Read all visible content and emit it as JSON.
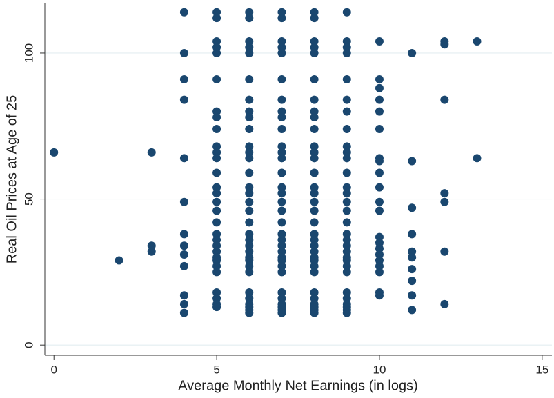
{
  "chart_data": {
    "type": "scatter",
    "xlabel": "Average Monthly Net Earnings (in logs)",
    "ylabel": "Real Oil Prices at Age of 25",
    "color": "#1a476f",
    "grid": true,
    "xlim": [
      -0.28,
      15.3
    ],
    "ylim": [
      -3.5,
      117
    ],
    "xticks": [
      0,
      5,
      10,
      15
    ],
    "yticks": [
      0,
      50,
      100
    ],
    "x": [
      0,
      2,
      3,
      3,
      3,
      4,
      4,
      4,
      4,
      4,
      4,
      4,
      4,
      4,
      4,
      4,
      4,
      4,
      5,
      5,
      5,
      5,
      5,
      5,
      5,
      5,
      5,
      5,
      5,
      5,
      5,
      5,
      5,
      5,
      5,
      5,
      5,
      5,
      5,
      5,
      5,
      5,
      5,
      5,
      5,
      5,
      5,
      5,
      6,
      6,
      6,
      6,
      6,
      6,
      6,
      6,
      6,
      6,
      6,
      6,
      6,
      6,
      6,
      6,
      6,
      6,
      6,
      6,
      6,
      6,
      6,
      6,
      6,
      6,
      6,
      6,
      6,
      6,
      6,
      6,
      6,
      7,
      7,
      7,
      7,
      7,
      7,
      7,
      7,
      7,
      7,
      7,
      7,
      7,
      7,
      7,
      7,
      7,
      7,
      7,
      7,
      7,
      7,
      7,
      7,
      7,
      7,
      7,
      7,
      7,
      7,
      7,
      7,
      7,
      8,
      8,
      8,
      8,
      8,
      8,
      8,
      8,
      8,
      8,
      8,
      8,
      8,
      8,
      8,
      8,
      8,
      8,
      8,
      8,
      8,
      8,
      8,
      8,
      8,
      8,
      8,
      8,
      8,
      8,
      8,
      8,
      8,
      9,
      9,
      9,
      9,
      9,
      9,
      9,
      9,
      9,
      9,
      9,
      9,
      9,
      9,
      9,
      9,
      9,
      9,
      9,
      9,
      9,
      9,
      9,
      9,
      9,
      9,
      9,
      9,
      9,
      9,
      9,
      10,
      10,
      10,
      10,
      10,
      10,
      10,
      10,
      10,
      10,
      10,
      10,
      10,
      10,
      10,
      10,
      10,
      10,
      10,
      10,
      10,
      11,
      11,
      11,
      11,
      11,
      11,
      11,
      11,
      11,
      11,
      12,
      12,
      12,
      12,
      12,
      12,
      12,
      13,
      13
    ],
    "y": [
      66,
      29,
      66,
      34,
      32,
      114,
      100,
      91,
      84,
      64,
      49,
      38,
      34,
      31,
      27,
      17,
      14,
      11,
      114,
      112,
      104,
      102,
      100,
      91,
      80,
      78,
      74,
      68,
      66,
      64,
      59,
      54,
      52,
      49,
      46,
      42,
      38,
      36,
      34,
      32,
      30,
      29,
      27,
      25,
      18,
      16,
      14,
      13,
      114,
      112,
      104,
      102,
      100,
      91,
      84,
      80,
      78,
      74,
      68,
      66,
      64,
      59,
      54,
      52,
      49,
      46,
      42,
      38,
      36,
      34,
      32,
      30,
      29,
      27,
      25,
      18,
      16,
      14,
      13,
      12,
      11,
      114,
      112,
      104,
      102,
      100,
      91,
      84,
      80,
      78,
      74,
      68,
      66,
      64,
      59,
      54,
      52,
      49,
      46,
      42,
      38,
      36,
      34,
      32,
      30,
      29,
      27,
      25,
      18,
      16,
      14,
      13,
      12,
      11,
      114,
      112,
      104,
      102,
      100,
      91,
      84,
      80,
      78,
      74,
      68,
      66,
      64,
      59,
      54,
      52,
      49,
      46,
      42,
      38,
      36,
      34,
      32,
      30,
      29,
      27,
      25,
      18,
      16,
      14,
      13,
      12,
      11,
      114,
      104,
      102,
      100,
      91,
      84,
      80,
      74,
      68,
      66,
      64,
      59,
      54,
      52,
      49,
      46,
      42,
      38,
      36,
      34,
      32,
      30,
      29,
      27,
      25,
      18,
      16,
      14,
      13,
      12,
      11,
      104,
      91,
      88,
      84,
      80,
      74,
      64,
      63,
      59,
      54,
      49,
      46,
      37,
      35,
      33,
      31,
      29,
      27,
      25,
      18,
      17,
      100,
      63,
      47,
      38,
      32,
      30,
      26,
      22,
      17,
      12,
      104,
      103,
      84,
      52,
      49,
      32,
      14,
      104,
      64
    ]
  }
}
